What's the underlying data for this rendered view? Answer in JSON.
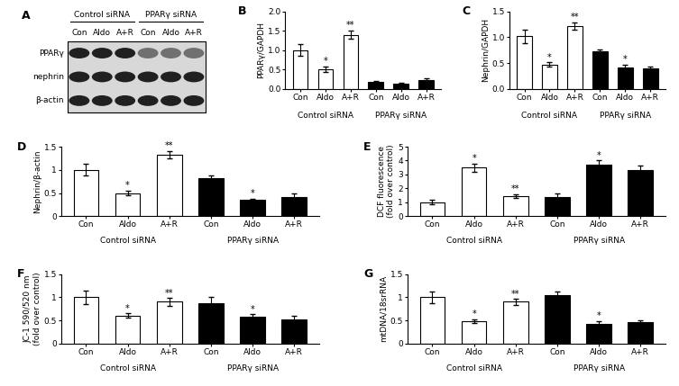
{
  "blot": {
    "panel": "A",
    "groups": [
      "Control siRNA",
      "PPARγ siRNA"
    ],
    "lanes": [
      "Con",
      "Aldo",
      "A+R",
      "Con",
      "Aldo",
      "A+R"
    ],
    "rows": [
      "PPARγ",
      "nephrin",
      "β-actin"
    ]
  },
  "chart_data": [
    {
      "type": "bar",
      "panel": "B",
      "ylabel": "PPARγ/GAPDH",
      "categories": [
        "Con",
        "Aldo",
        "A+R",
        "Con",
        "Aldo",
        "A+R"
      ],
      "groups": [
        "Control siRNA",
        "PPARγ siRNA"
      ],
      "values": [
        1.0,
        0.5,
        1.4,
        0.17,
        0.13,
        0.22
      ],
      "errors": [
        0.15,
        0.07,
        0.1,
        0.04,
        0.03,
        0.05
      ],
      "annotations": [
        null,
        "*",
        "**",
        null,
        null,
        null
      ],
      "colors": [
        "#ffffff",
        "#ffffff",
        "#ffffff",
        "#000000",
        "#000000",
        "#000000"
      ],
      "ylim": [
        0,
        2
      ],
      "yticks": [
        {
          "value": 0,
          "label": "0.0"
        },
        {
          "value": 0.5,
          "label": "0.5"
        },
        {
          "value": 1,
          "label": "1.0"
        },
        {
          "value": 1.5,
          "label": "1.5"
        },
        {
          "value": 2,
          "label": "2.0"
        }
      ]
    },
    {
      "type": "bar",
      "panel": "C",
      "ylabel": "Nephrin/GAPDH",
      "categories": [
        "Con",
        "Aldo",
        "A+R",
        "Con",
        "Aldo",
        "A+R"
      ],
      "groups": [
        "Control siRNA",
        "PPARγ siRNA"
      ],
      "values": [
        1.02,
        0.47,
        1.22,
        0.72,
        0.42,
        0.39
      ],
      "errors": [
        0.13,
        0.04,
        0.07,
        0.05,
        0.04,
        0.04
      ],
      "annotations": [
        null,
        "*",
        "**",
        null,
        "*",
        null
      ],
      "colors": [
        "#ffffff",
        "#ffffff",
        "#ffffff",
        "#000000",
        "#000000",
        "#000000"
      ],
      "ylim": [
        0,
        1.5
      ],
      "yticks": [
        {
          "value": 0,
          "label": "0.0"
        },
        {
          "value": 0.5,
          "label": "0.5"
        },
        {
          "value": 1,
          "label": "1.0"
        },
        {
          "value": 1.5,
          "label": "1.5"
        }
      ]
    },
    {
      "type": "bar",
      "panel": "D",
      "ylabel": "Nephrin/β-actin",
      "categories": [
        "Con",
        "Aldo",
        "A+R",
        "Con",
        "Aldo",
        "A+R"
      ],
      "groups": [
        "Control siRNA",
        "PPARγ siRNA"
      ],
      "values": [
        1.0,
        0.5,
        1.33,
        0.82,
        0.35,
        0.42
      ],
      "errors": [
        0.13,
        0.05,
        0.08,
        0.06,
        0.03,
        0.08
      ],
      "annotations": [
        null,
        "*",
        "**",
        null,
        "*",
        null
      ],
      "colors": [
        "#ffffff",
        "#ffffff",
        "#ffffff",
        "#000000",
        "#000000",
        "#000000"
      ],
      "ylim": [
        0,
        1.5
      ],
      "yticks": [
        {
          "value": 0,
          "label": "0"
        },
        {
          "value": 0.5,
          "label": "0.5"
        },
        {
          "value": 1,
          "label": "1"
        },
        {
          "value": 1.5,
          "label": "1.5"
        }
      ]
    },
    {
      "type": "bar",
      "panel": "E",
      "ylabel": "DCF fluorescence\n(fold over control)",
      "categories": [
        "Con",
        "Aldo",
        "A+R",
        "Con",
        "Aldo",
        "A+R"
      ],
      "groups": [
        "Control siRNA",
        "PPARγ siRNA"
      ],
      "values": [
        1.0,
        3.5,
        1.45,
        1.4,
        3.7,
        3.3
      ],
      "errors": [
        0.15,
        0.3,
        0.15,
        0.25,
        0.3,
        0.35
      ],
      "annotations": [
        null,
        "*",
        "**",
        null,
        "*",
        null
      ],
      "colors": [
        "#ffffff",
        "#ffffff",
        "#ffffff",
        "#000000",
        "#000000",
        "#000000"
      ],
      "ylim": [
        0,
        5
      ],
      "yticks": [
        0,
        1,
        2,
        3,
        4,
        5
      ]
    },
    {
      "type": "bar",
      "panel": "F",
      "ylabel": "JC-1 590/520 nm\n(fold over control)",
      "categories": [
        "Con",
        "Aldo",
        "A+R",
        "Con",
        "Aldo",
        "A+R"
      ],
      "groups": [
        "Control siRNA",
        "PPARγ siRNA"
      ],
      "values": [
        1.0,
        0.6,
        0.9,
        0.88,
        0.58,
        0.53
      ],
      "errors": [
        0.15,
        0.05,
        0.08,
        0.13,
        0.05,
        0.07
      ],
      "annotations": [
        null,
        "*",
        "**",
        null,
        "*",
        null
      ],
      "colors": [
        "#ffffff",
        "#ffffff",
        "#ffffff",
        "#000000",
        "#000000",
        "#000000"
      ],
      "ylim": [
        0,
        1.5
      ],
      "yticks": [
        0,
        0.5,
        1,
        1.5
      ]
    },
    {
      "type": "bar",
      "panel": "G",
      "ylabel": "mtDNA/18srRNA",
      "categories": [
        "Con",
        "Aldo",
        "A+R",
        "Con",
        "Aldo",
        "A+R"
      ],
      "groups": [
        "Control siRNA",
        "PPARγ siRNA"
      ],
      "values": [
        1.0,
        0.48,
        0.9,
        1.05,
        0.43,
        0.46
      ],
      "errors": [
        0.13,
        0.04,
        0.06,
        0.07,
        0.05,
        0.05
      ],
      "annotations": [
        null,
        "*",
        "**",
        null,
        "*",
        null
      ],
      "colors": [
        "#ffffff",
        "#ffffff",
        "#ffffff",
        "#000000",
        "#000000",
        "#000000"
      ],
      "ylim": [
        0,
        1.5
      ],
      "yticks": [
        {
          "value": 0,
          "label": "0"
        },
        {
          "value": 0.5,
          "label": "0.5"
        },
        {
          "value": 1,
          "label": "1"
        },
        {
          "value": 1.5,
          "label": "1.5"
        }
      ]
    }
  ]
}
